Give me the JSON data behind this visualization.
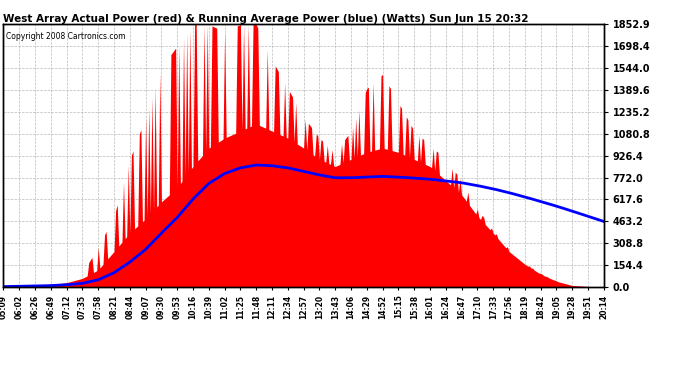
{
  "title": "West Array Actual Power (red) & Running Average Power (blue) (Watts) Sun Jun 15 20:32",
  "copyright": "Copyright 2008 Cartronics.com",
  "bg_color": "#FFFFFF",
  "plot_bg_color": "#FFFFFF",
  "grid_color": "#AAAAAA",
  "red_color": "#FF0000",
  "blue_color": "#0000FF",
  "y_ticks": [
    0.0,
    154.4,
    308.8,
    463.2,
    617.6,
    772.0,
    926.4,
    1080.8,
    1235.2,
    1389.6,
    1544.0,
    1698.4,
    1852.9
  ],
  "ymax": 1852.9,
  "x_labels": [
    "05:09",
    "06:02",
    "06:26",
    "06:49",
    "07:12",
    "07:35",
    "07:58",
    "08:21",
    "08:44",
    "09:07",
    "09:30",
    "09:53",
    "10:16",
    "10:39",
    "11:02",
    "11:25",
    "11:48",
    "12:11",
    "12:34",
    "12:57",
    "13:20",
    "13:43",
    "14:06",
    "14:29",
    "14:52",
    "15:15",
    "15:38",
    "16:01",
    "16:24",
    "16:47",
    "17:10",
    "17:33",
    "17:56",
    "18:19",
    "18:42",
    "19:05",
    "19:28",
    "19:51",
    "20:14"
  ],
  "actual_base": [
    2,
    5,
    10,
    15,
    30,
    60,
    120,
    250,
    380,
    480,
    600,
    700,
    850,
    980,
    1050,
    1100,
    1150,
    1100,
    1050,
    980,
    900,
    850,
    900,
    950,
    980,
    950,
    900,
    850,
    750,
    650,
    500,
    380,
    250,
    160,
    90,
    40,
    10,
    3,
    1
  ],
  "actual_spike": [
    2,
    8,
    15,
    20,
    50,
    100,
    280,
    500,
    900,
    1200,
    1550,
    1700,
    1852,
    1852,
    1800,
    1852,
    1852,
    1600,
    1400,
    1200,
    1050,
    950,
    1100,
    1400,
    1500,
    1300,
    1100,
    1000,
    900,
    750,
    550,
    400,
    270,
    170,
    95,
    42,
    12,
    4,
    1
  ],
  "running_avg": [
    2,
    4,
    6,
    9,
    15,
    25,
    50,
    100,
    175,
    265,
    380,
    490,
    620,
    730,
    800,
    840,
    860,
    855,
    840,
    815,
    790,
    770,
    770,
    775,
    780,
    775,
    768,
    760,
    748,
    735,
    715,
    692,
    665,
    635,
    603,
    570,
    535,
    498,
    462
  ]
}
